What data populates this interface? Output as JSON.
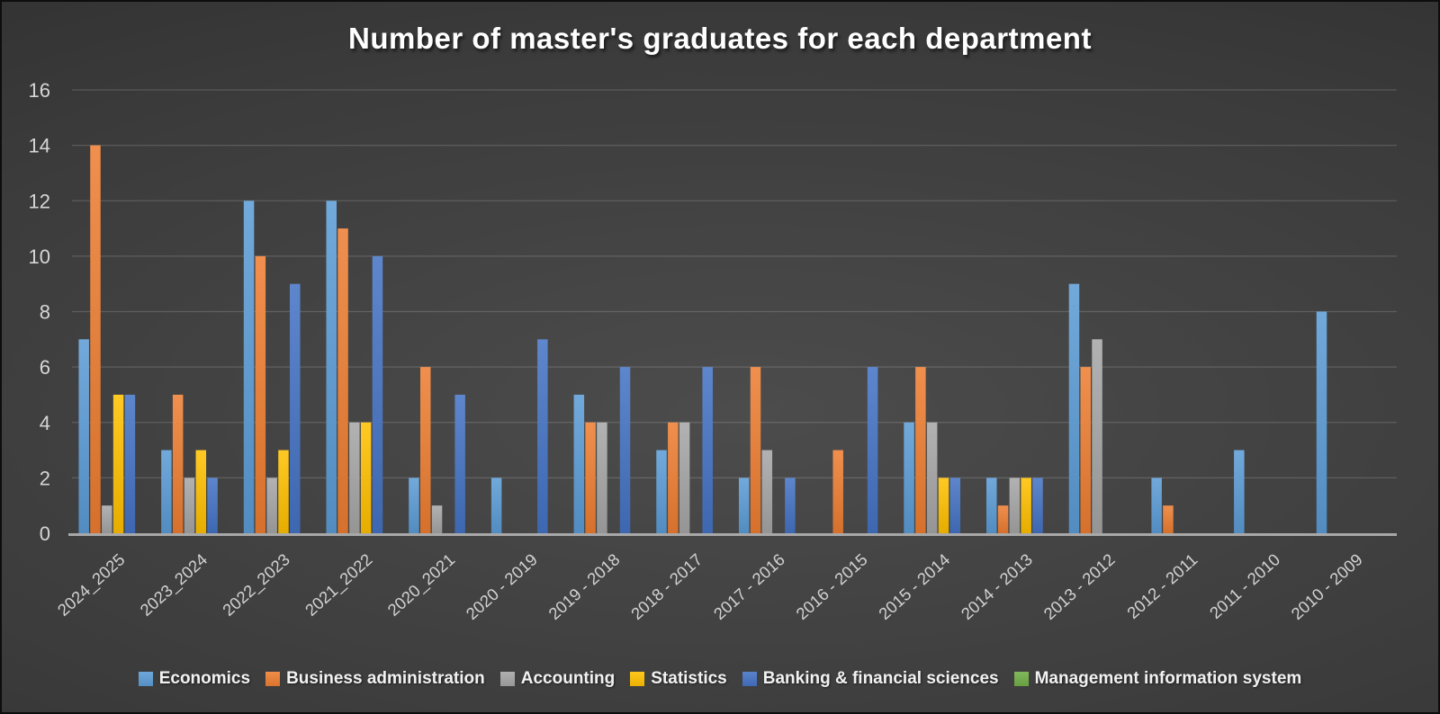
{
  "title": "Number of master's graduates for each department",
  "chart_data": {
    "type": "bar",
    "title": "Number of master's graduates for each department",
    "categories": [
      "2024_2025",
      "2023_2024",
      "2022_2023",
      "2021_2022",
      "2020_2021",
      "2020 - 2019",
      "2019 - 2018",
      "2018 - 2017",
      "2017 - 2016",
      "2016 - 2015",
      "2015 - 2014",
      "2014 - 2013",
      "2013 - 2012",
      "2012 - 2011",
      "2011 - 2010",
      "2010 - 2009"
    ],
    "series": [
      {
        "name": "Economics",
        "color": "#5B9BD5",
        "values": [
          7,
          3,
          12,
          12,
          2,
          2,
          5,
          3,
          2,
          0,
          4,
          2,
          9,
          2,
          3,
          8
        ]
      },
      {
        "name": "Business administration",
        "color": "#ED7D31",
        "values": [
          14,
          5,
          10,
          11,
          6,
          0,
          4,
          4,
          6,
          3,
          6,
          1,
          6,
          1,
          0,
          0
        ]
      },
      {
        "name": "Accounting",
        "color": "#A5A5A5",
        "values": [
          1,
          2,
          2,
          4,
          1,
          0,
          4,
          4,
          3,
          0,
          4,
          2,
          7,
          0,
          0,
          0
        ]
      },
      {
        "name": "Statistics",
        "color": "#FFC000",
        "values": [
          5,
          3,
          3,
          4,
          0,
          0,
          0,
          0,
          0,
          0,
          2,
          2,
          0,
          0,
          0,
          0
        ]
      },
      {
        "name": "Banking & financial sciences",
        "color": "#4472C4",
        "values": [
          5,
          2,
          9,
          10,
          5,
          7,
          6,
          6,
          2,
          6,
          2,
          2,
          0,
          0,
          0,
          0
        ]
      },
      {
        "name": "Management information system",
        "color": "#70AD47",
        "values": [
          0,
          0,
          0,
          0,
          0,
          0,
          0,
          0,
          0,
          0,
          0,
          0,
          0,
          0,
          0,
          0
        ]
      }
    ],
    "ylim": [
      0,
      16
    ],
    "ytick_step": 2,
    "yticks": [
      0,
      2,
      4,
      6,
      8,
      10,
      12,
      14,
      16
    ],
    "grid": true,
    "legend_position": "bottom",
    "axis_text_color": "#d6d6d6",
    "gridline_color": "rgba(255,255,255,0.16)",
    "axis_line_color": "#a8a8a8"
  }
}
